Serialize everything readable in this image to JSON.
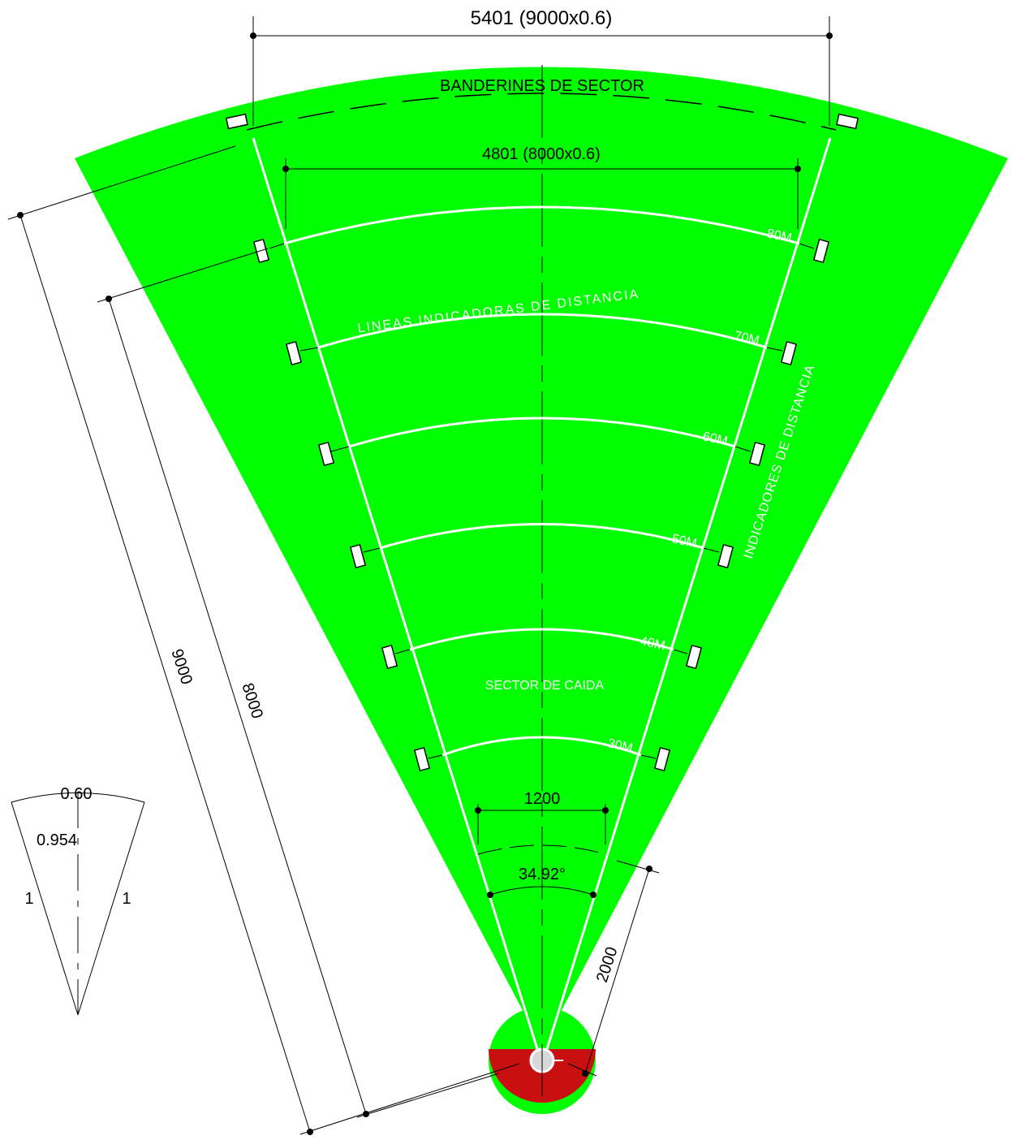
{
  "colors": {
    "field": "#00ff00",
    "circle_lower": "#c81010",
    "lines": "#ffffff",
    "dims": "#000000"
  },
  "labels": {
    "top_dimension": "5401 (9000x0.6)",
    "banderines": "BANDERINES DE SECTOR",
    "inner_dimension": "4801 (8000x0.6)",
    "lineas_indicadoras": "LINEAS INDICADORAS DE DISTANCIA",
    "indicadores": "INDICADORES DE DISTANCIA",
    "sector_caida": "SECTOR DE CAIDA",
    "width_1200": "1200",
    "angle": "34.92°",
    "dim_2000": "2000",
    "dim_9000": "9000",
    "dim_8000": "8000"
  },
  "distance_marks": [
    "80M",
    "70M",
    "60M",
    "50M",
    "40M",
    "30M"
  ],
  "ratio_diagram": {
    "top": "0.60",
    "height": "0.954",
    "left_side": "1",
    "right_side": "1"
  }
}
